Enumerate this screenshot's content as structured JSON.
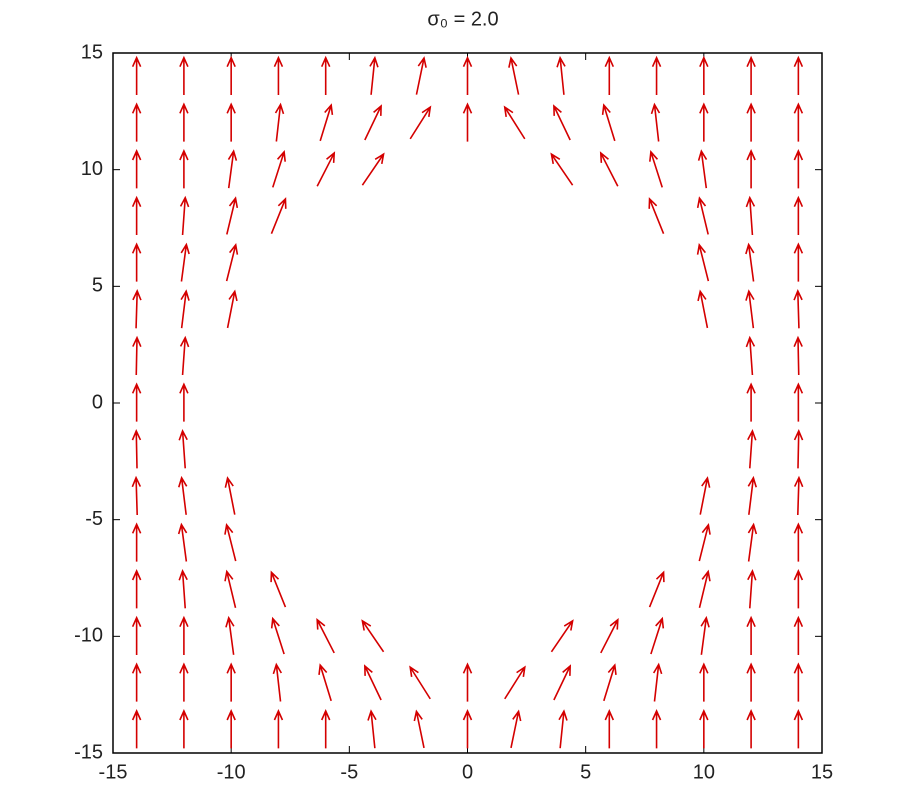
{
  "chart_data": {
    "type": "quiver",
    "title": "σ₀ = 2.0",
    "color": "#d40000",
    "xlim": [
      -15,
      15
    ],
    "ylim": [
      -15,
      15
    ],
    "xticks": [
      -15,
      -10,
      -5,
      0,
      5,
      10,
      15
    ],
    "yticks": [
      -15,
      -10,
      -5,
      0,
      5,
      10,
      15
    ],
    "x": [
      -14,
      -12,
      -10,
      -8,
      -6,
      -4,
      -2,
      0,
      2,
      4,
      6,
      8,
      10,
      12,
      14
    ],
    "y": [
      -14,
      -12,
      -10,
      -8,
      -6,
      -4,
      -2,
      0,
      2,
      4,
      6,
      8,
      10,
      12,
      14
    ],
    "u": [
      [
        0,
        0,
        0,
        0,
        0,
        -0.1,
        -0.2,
        0,
        0.2,
        0.1,
        0,
        0,
        0,
        0,
        0
      ],
      [
        0,
        0,
        0,
        -0.11,
        -0.29,
        -0.43,
        -0.53,
        0,
        0.53,
        0.43,
        0.29,
        0.11,
        0,
        0,
        0
      ],
      [
        0,
        0,
        -0.13,
        -0.3,
        -0.45,
        -0.56,
        null,
        null,
        null,
        0.56,
        0.45,
        0.3,
        0.13,
        0,
        0
      ],
      [
        0,
        -0.07,
        -0.23,
        -0.37,
        null,
        null,
        null,
        null,
        null,
        null,
        null,
        0.37,
        0.23,
        0.07,
        0
      ],
      [
        0,
        -0.13,
        -0.24,
        null,
        null,
        null,
        null,
        null,
        null,
        null,
        null,
        null,
        0.24,
        0.13,
        0
      ],
      [
        -0.03,
        -0.12,
        -0.19,
        null,
        null,
        null,
        null,
        null,
        null,
        null,
        null,
        null,
        0.19,
        0.12,
        0.03
      ],
      [
        -0.02,
        -0.07,
        null,
        null,
        null,
        null,
        null,
        null,
        null,
        null,
        null,
        null,
        null,
        0.07,
        0.02
      ],
      [
        0,
        0,
        null,
        null,
        null,
        null,
        null,
        null,
        null,
        null,
        null,
        null,
        null,
        0,
        0
      ],
      [
        0.02,
        0.07,
        null,
        null,
        null,
        null,
        null,
        null,
        null,
        null,
        null,
        null,
        null,
        -0.07,
        -0.02
      ],
      [
        0.03,
        0.12,
        0.19,
        null,
        null,
        null,
        null,
        null,
        null,
        null,
        null,
        null,
        -0.19,
        -0.12,
        -0.03
      ],
      [
        0,
        0.13,
        0.24,
        null,
        null,
        null,
        null,
        null,
        null,
        null,
        null,
        null,
        -0.24,
        -0.13,
        0
      ],
      [
        0,
        0.07,
        0.23,
        0.37,
        null,
        null,
        null,
        null,
        null,
        null,
        null,
        -0.37,
        -0.23,
        -0.07,
        0
      ],
      [
        0,
        0,
        0.13,
        0.3,
        0.45,
        0.56,
        null,
        null,
        null,
        -0.56,
        -0.45,
        -0.3,
        -0.13,
        0,
        0
      ],
      [
        0,
        0,
        0,
        0.11,
        0.29,
        0.43,
        0.53,
        0,
        -0.53,
        -0.43,
        -0.29,
        -0.11,
        0,
        0,
        0
      ],
      [
        0,
        0,
        0,
        0,
        0,
        0.1,
        0.2,
        0,
        -0.2,
        -0.1,
        0,
        0,
        0,
        0,
        0
      ]
    ],
    "v": [
      [
        1,
        1,
        1,
        1,
        1,
        0.99,
        0.98,
        1,
        0.98,
        0.99,
        1,
        1,
        1,
        1,
        1
      ],
      [
        1,
        1,
        1,
        0.99,
        0.96,
        0.91,
        0.85,
        1,
        0.85,
        0.91,
        0.96,
        0.99,
        1,
        1,
        1
      ],
      [
        1,
        1,
        0.99,
        0.95,
        0.89,
        0.83,
        null,
        null,
        null,
        0.83,
        0.89,
        0.95,
        0.99,
        1,
        1
      ],
      [
        1,
        1,
        0.97,
        0.93,
        null,
        null,
        null,
        null,
        null,
        null,
        null,
        0.93,
        0.97,
        1,
        1
      ],
      [
        1,
        0.99,
        0.97,
        null,
        null,
        null,
        null,
        null,
        null,
        null,
        null,
        null,
        0.97,
        0.99,
        1
      ],
      [
        1,
        0.99,
        0.98,
        null,
        null,
        null,
        null,
        null,
        null,
        null,
        null,
        null,
        0.98,
        0.99,
        1
      ],
      [
        1,
        1,
        null,
        null,
        null,
        null,
        null,
        null,
        null,
        null,
        null,
        null,
        null,
        1,
        1
      ],
      [
        1,
        1,
        null,
        null,
        null,
        null,
        null,
        null,
        null,
        null,
        null,
        null,
        null,
        1,
        1
      ],
      [
        1,
        1,
        null,
        null,
        null,
        null,
        null,
        null,
        null,
        null,
        null,
        null,
        null,
        1,
        1
      ],
      [
        1,
        0.99,
        0.98,
        null,
        null,
        null,
        null,
        null,
        null,
        null,
        null,
        null,
        0.98,
        0.99,
        1
      ],
      [
        1,
        0.99,
        0.97,
        null,
        null,
        null,
        null,
        null,
        null,
        null,
        null,
        null,
        0.97,
        0.99,
        1
      ],
      [
        1,
        1,
        0.97,
        0.93,
        null,
        null,
        null,
        null,
        null,
        null,
        null,
        0.93,
        0.97,
        1,
        1
      ],
      [
        1,
        1,
        0.99,
        0.95,
        0.89,
        0.83,
        null,
        null,
        null,
        0.83,
        0.89,
        0.95,
        0.99,
        1,
        1
      ],
      [
        1,
        1,
        1,
        0.99,
        0.96,
        0.91,
        0.85,
        1,
        0.85,
        0.91,
        0.96,
        0.99,
        1,
        1,
        1
      ],
      [
        1,
        1,
        1,
        1,
        1,
        0.99,
        0.98,
        1,
        0.98,
        0.99,
        1,
        1,
        1,
        1,
        1
      ]
    ]
  }
}
